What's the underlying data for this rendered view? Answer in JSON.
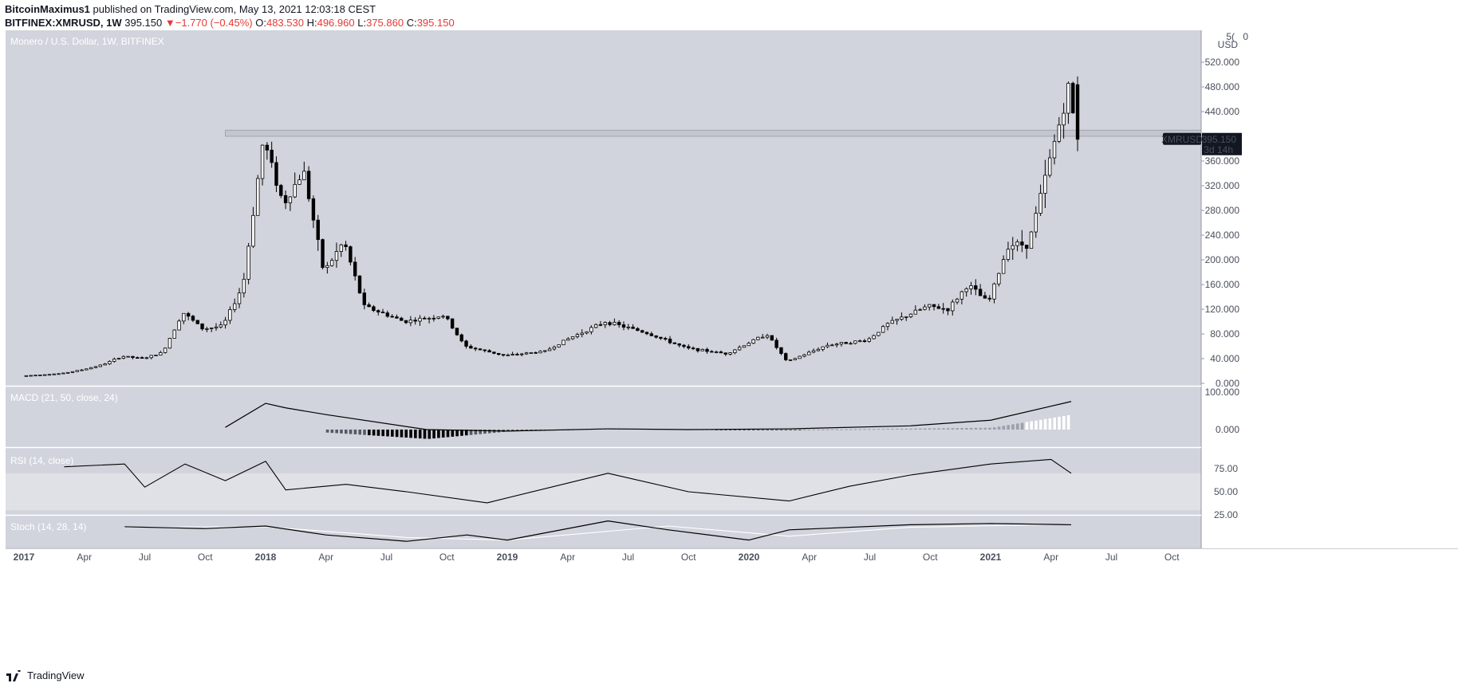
{
  "header": {
    "publisher": "BitcoinMaximus1",
    "published_text": " published on TradingView.com, May 13, 2021 12:03:18 CEST",
    "symbol": "BITFINEX:XMRUSD, 1W",
    "last": "395.150",
    "change": "−1.770 (−0.45%)",
    "o_label": "O:",
    "o": "483.530",
    "h_label": "H:",
    "h": "496.960",
    "l_label": "L:",
    "l": "375.860",
    "c_label": "C:",
    "c": "395.150"
  },
  "footer": {
    "brand": "TradingView"
  },
  "panes": {
    "price_label": "Monero / U.S. Dollar, 1W, BITFINEX",
    "macd_label": "MACD (21, 50, close, 24)",
    "rsi_label": "RSI (14, close)",
    "stoch_label": "Stoch (14, 28, 14)",
    "currency": "USD",
    "partial_top_tick": "5(",
    "partial_top_right": "0",
    "last_price_tag": "395.150",
    "countdown_tag": "3d 14h",
    "symbol_tag": "XMRUSD",
    "macd_ticks": [
      "100.000",
      "0.000"
    ],
    "rsi_ticks": [
      "75.00",
      "50.00",
      "25.00"
    ]
  },
  "colors": {
    "pane_bg": "#d1d4dc",
    "rsi_band": "#dfe1e6",
    "candle_up": "#ffffff",
    "candle_down": "#000000",
    "resistance_zone": "#c3c6ce"
  },
  "chart_data": [
    {
      "type": "candlestick",
      "title": "Monero / U.S. Dollar, 1W, BITFINEX",
      "ylabel": "USD",
      "ylim": [
        0,
        560
      ],
      "yticks": [
        0,
        40,
        80,
        120,
        160,
        200,
        240,
        280,
        320,
        360,
        440,
        480,
        520
      ],
      "ytick_labels": [
        "0.000",
        "40.000",
        "80.000",
        "120.000",
        "160.000",
        "200.000",
        "240.000",
        "280.000",
        "320.000",
        "360.000",
        "440.000",
        "480.000",
        "520.000"
      ],
      "x_labels": [
        "2017",
        "Apr",
        "Jul",
        "Oct",
        "2018",
        "Apr",
        "Jul",
        "Oct",
        "2019",
        "Apr",
        "Jul",
        "Oct",
        "2020",
        "Apr",
        "Jul",
        "Oct",
        "2021",
        "Apr",
        "Jul",
        "Oct"
      ],
      "resistance_zone": [
        400,
        410
      ],
      "last_value": 395.15,
      "price_path": [
        [
          "2017-01",
          12
        ],
        [
          "2017-03",
          16
        ],
        [
          "2017-04",
          22
        ],
        [
          "2017-05",
          30
        ],
        [
          "2017-06",
          44
        ],
        [
          "2017-07",
          40
        ],
        [
          "2017-08",
          50
        ],
        [
          "2017-09",
          115
        ],
        [
          "2017-10",
          88
        ],
        [
          "2017-11",
          93
        ],
        [
          "2017-12",
          160
        ],
        [
          "2018-01",
          395
        ],
        [
          "2018-02",
          290
        ],
        [
          "2018-03",
          345
        ],
        [
          "2018-04",
          180
        ],
        [
          "2018-05",
          230
        ],
        [
          "2018-06",
          125
        ],
        [
          "2018-08",
          100
        ],
        [
          "2018-10",
          110
        ],
        [
          "2018-11",
          60
        ],
        [
          "2019-01",
          45
        ],
        [
          "2019-03",
          52
        ],
        [
          "2019-04",
          70
        ],
        [
          "2019-06",
          100
        ],
        [
          "2019-08",
          82
        ],
        [
          "2019-10",
          57
        ],
        [
          "2019-12",
          48
        ],
        [
          "2020-02",
          80
        ],
        [
          "2020-03",
          35
        ],
        [
          "2020-05",
          62
        ],
        [
          "2020-07",
          70
        ],
        [
          "2020-08",
          96
        ],
        [
          "2020-10",
          125
        ],
        [
          "2020-11",
          120
        ],
        [
          "2020-12",
          160
        ],
        [
          "2021-01",
          130
        ],
        [
          "2021-02",
          225
        ],
        [
          "2021-03",
          225
        ],
        [
          "2021-04",
          355
        ],
        [
          "2021-05",
          480
        ],
        [
          "2021-05-13",
          395.15
        ]
      ]
    },
    {
      "type": "line",
      "title": "MACD (21, 50, close, 24)",
      "ylim": [
        -20,
        100
      ],
      "series": [
        {
          "name": "MACD",
          "x": [
            "2017-11",
            "2018-01",
            "2018-02",
            "2018-04",
            "2018-09",
            "2019-01",
            "2019-06",
            "2019-10",
            "2020-03",
            "2020-09",
            "2021-01",
            "2021-05"
          ],
          "values": [
            6,
            70,
            58,
            40,
            0,
            -4,
            2,
            0,
            2,
            10,
            25,
            75
          ]
        },
        {
          "name": "Histogram",
          "type": "bar",
          "x": [
            "2018-04",
            "2018-09",
            "2019-01",
            "2019-06",
            "2020-01",
            "2020-06",
            "2021-01",
            "2021-05"
          ],
          "values": [
            -8,
            -25,
            -5,
            3,
            -1,
            1,
            5,
            40
          ]
        }
      ]
    },
    {
      "type": "line",
      "title": "RSI (14, close)",
      "ylim": [
        20,
        95
      ],
      "band": [
        30,
        70
      ],
      "series": [
        {
          "name": "RSI",
          "x": [
            "2017-03",
            "2017-06",
            "2017-07",
            "2017-09",
            "2017-11",
            "2018-01",
            "2018-02",
            "2018-05",
            "2018-08",
            "2018-12",
            "2019-06",
            "2019-10",
            "2020-03",
            "2020-06",
            "2020-09",
            "2021-01",
            "2021-04",
            "2021-05"
          ],
          "values": [
            77,
            80,
            55,
            80,
            62,
            83,
            52,
            58,
            50,
            38,
            70,
            50,
            40,
            56,
            68,
            80,
            85,
            70
          ]
        }
      ]
    },
    {
      "type": "line",
      "title": "Stoch (14, 28, 14)",
      "ylim": [
        0,
        100
      ],
      "series": [
        {
          "name": "%K",
          "x": [
            "2017-06",
            "2017-10",
            "2018-01",
            "2018-04",
            "2018-08",
            "2018-11",
            "2019-01",
            "2019-06",
            "2019-09",
            "2020-01",
            "2020-03",
            "2020-09",
            "2021-01",
            "2021-05"
          ],
          "values": [
            72,
            65,
            75,
            40,
            15,
            40,
            20,
            95,
            60,
            20,
            60,
            80,
            85,
            80
          ]
        },
        {
          "name": "%D",
          "x": [
            "2017-06",
            "2018-01",
            "2018-08",
            "2019-01",
            "2019-09",
            "2020-03",
            "2020-09",
            "2021-05"
          ],
          "values": [
            70,
            72,
            30,
            20,
            75,
            35,
            70,
            82
          ]
        }
      ]
    }
  ]
}
